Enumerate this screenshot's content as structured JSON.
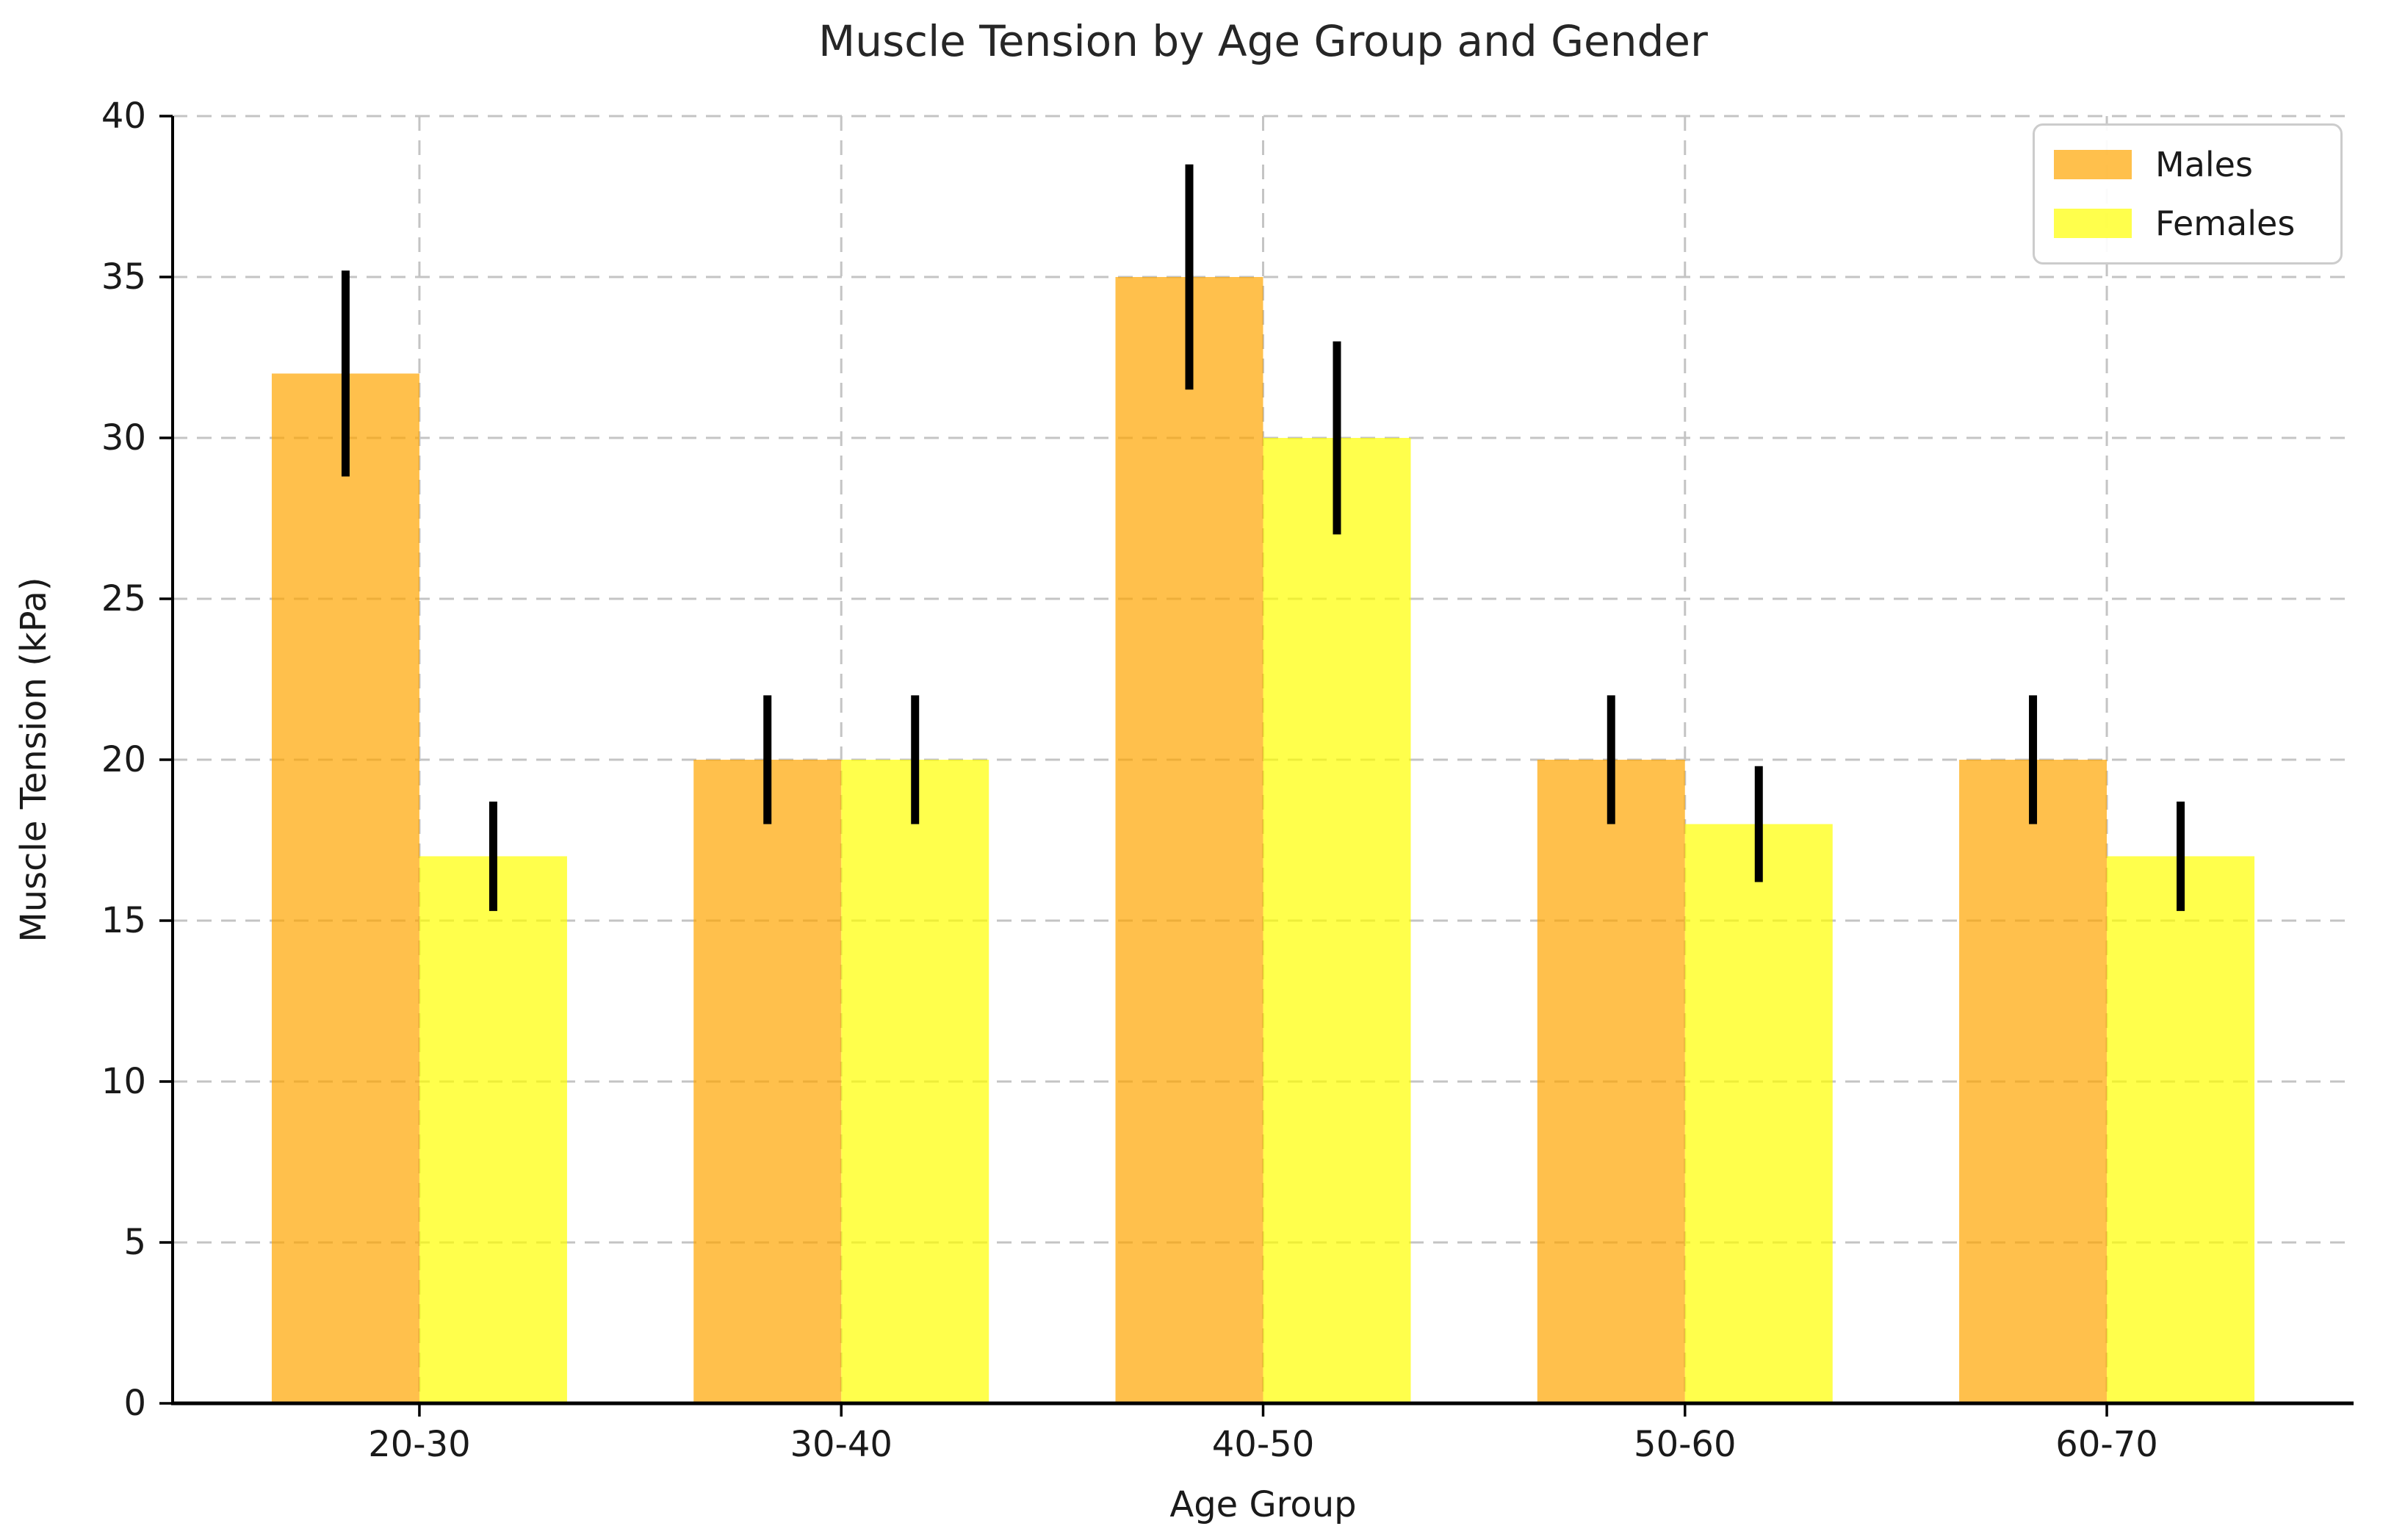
{
  "chart_data": {
    "type": "bar",
    "title": "Muscle Tension by Age Group and Gender",
    "xlabel": "Age Group",
    "ylabel": "Muscle Tension (kPa)",
    "categories": [
      "20-30",
      "30-40",
      "40-50",
      "50-60",
      "60-70"
    ],
    "series": [
      {
        "name": "Males",
        "color": "rgba(255,165,0,0.7)",
        "values": [
          32,
          20,
          35,
          20,
          20
        ],
        "errors": [
          3.2,
          2,
          3.5,
          2,
          2
        ]
      },
      {
        "name": "Females",
        "color": "rgba(255,255,0,0.7)",
        "values": [
          17,
          20,
          30,
          18,
          17
        ],
        "errors": [
          1.7,
          2,
          3,
          1.8,
          1.7
        ]
      }
    ],
    "ylim": [
      0,
      40
    ],
    "yticks": [
      0,
      5,
      10,
      15,
      20,
      25,
      30,
      35,
      40
    ],
    "bar_width": 0.35,
    "grid": true,
    "grid_style": "dashed",
    "legend_position": "upper right",
    "error_color": "#000000"
  },
  "style": {
    "grid_color": "#c4c4c4",
    "spine_color": "#000000",
    "text_color": "#1a1a1a",
    "legend_border_color": "#cccccc",
    "background": "#ffffff"
  }
}
